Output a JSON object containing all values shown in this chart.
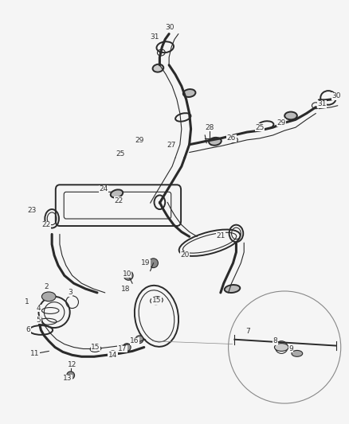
{
  "bg_color": "#f5f5f5",
  "fig_width": 4.38,
  "fig_height": 5.33,
  "dpi": 100,
  "line_color": "#2a2a2a",
  "label_color": "#333333",
  "label_fs": 6.5,
  "lw_tube": 2.2,
  "lw_mid": 1.4,
  "lw_thin": 0.8,
  "labels": [
    {
      "num": "1",
      "ix": 30,
      "iy": 382
    },
    {
      "num": "2",
      "ix": 55,
      "iy": 362
    },
    {
      "num": "3",
      "ix": 85,
      "iy": 370
    },
    {
      "num": "4",
      "ix": 45,
      "iy": 390
    },
    {
      "num": "5",
      "ix": 45,
      "iy": 405
    },
    {
      "num": "6",
      "ix": 32,
      "iy": 418
    },
    {
      "num": "7",
      "ix": 313,
      "iy": 420
    },
    {
      "num": "8",
      "ix": 348,
      "iy": 432
    },
    {
      "num": "9",
      "ix": 368,
      "iy": 442
    },
    {
      "num": "10",
      "ix": 158,
      "iy": 346
    },
    {
      "num": "11",
      "ix": 40,
      "iy": 448
    },
    {
      "num": "12",
      "ix": 88,
      "iy": 462
    },
    {
      "num": "13",
      "ix": 82,
      "iy": 480
    },
    {
      "num": "14",
      "ix": 140,
      "iy": 450
    },
    {
      "num": "15",
      "ix": 118,
      "iy": 440
    },
    {
      "num": "15",
      "ix": 196,
      "iy": 380
    },
    {
      "num": "16",
      "ix": 168,
      "iy": 432
    },
    {
      "num": "17",
      "ix": 152,
      "iy": 442
    },
    {
      "num": "18",
      "ix": 156,
      "iy": 365
    },
    {
      "num": "19",
      "ix": 182,
      "iy": 332
    },
    {
      "num": "20",
      "ix": 232,
      "iy": 322
    },
    {
      "num": "21",
      "ix": 278,
      "iy": 297
    },
    {
      "num": "22",
      "ix": 55,
      "iy": 283
    },
    {
      "num": "22",
      "ix": 148,
      "iy": 252
    },
    {
      "num": "23",
      "ix": 36,
      "iy": 264
    },
    {
      "num": "24",
      "ix": 128,
      "iy": 237
    },
    {
      "num": "25",
      "ix": 150,
      "iy": 192
    },
    {
      "num": "25",
      "ix": 328,
      "iy": 158
    },
    {
      "num": "26",
      "ix": 292,
      "iy": 172
    },
    {
      "num": "27",
      "ix": 215,
      "iy": 181
    },
    {
      "num": "28",
      "ix": 264,
      "iy": 158
    },
    {
      "num": "29",
      "ix": 174,
      "iy": 175
    },
    {
      "num": "29",
      "ix": 356,
      "iy": 152
    },
    {
      "num": "30",
      "ix": 213,
      "iy": 30
    },
    {
      "num": "30",
      "ix": 426,
      "iy": 118
    },
    {
      "num": "31",
      "ix": 194,
      "iy": 42
    },
    {
      "num": "31",
      "ix": 408,
      "iy": 128
    }
  ]
}
